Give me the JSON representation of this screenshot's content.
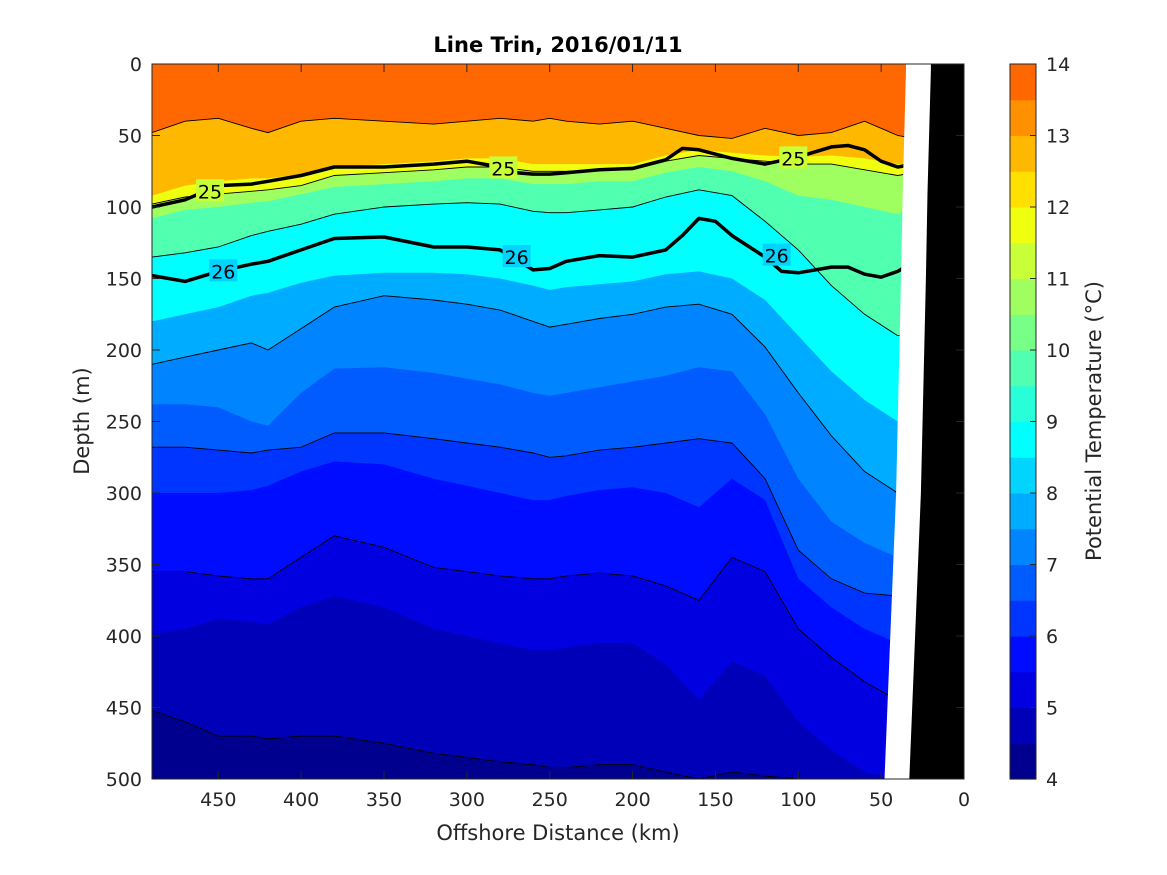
{
  "chart_data": {
    "type": "contourf",
    "title": "Line Trin, 2016/01/11",
    "xlabel": "Offshore Distance (km)",
    "ylabel": "Depth (m)",
    "xlim": [
      490,
      0
    ],
    "x_reversed": true,
    "ylim": [
      0,
      500
    ],
    "y_reversed": true,
    "xticks": [
      450,
      400,
      350,
      300,
      250,
      200,
      150,
      100,
      50,
      0
    ],
    "yticks": [
      0,
      50,
      100,
      150,
      200,
      250,
      300,
      350,
      400,
      450,
      500
    ],
    "grid": false,
    "colorbar": {
      "label": "Potential Temperature (°C)",
      "ticks": [
        4,
        5,
        6,
        7,
        8,
        9,
        10,
        11,
        12,
        13,
        14
      ],
      "levels": [
        4,
        4.5,
        5,
        5.5,
        6,
        6.5,
        7,
        7.5,
        8,
        8.5,
        9,
        9.5,
        10,
        10.5,
        11,
        11.5,
        12,
        12.5,
        13,
        13.5,
        14
      ],
      "colors": [
        "#00008f",
        "#0000b8",
        "#0000e0",
        "#000cff",
        "#0034ff",
        "#005cff",
        "#0084ff",
        "#00acff",
        "#00d4ff",
        "#00ffff",
        "#28ffd8",
        "#50ffb0",
        "#78ff88",
        "#a0ff60",
        "#c8ff38",
        "#f0ff10",
        "#ffe000",
        "#ffb800",
        "#ff9000",
        "#ff6800",
        "#ff4000"
      ],
      "colormap": "jet"
    },
    "temperature_isotherm_depths": {
      "x": [
        490,
        470,
        450,
        430,
        420,
        400,
        380,
        350,
        320,
        300,
        280,
        260,
        250,
        240,
        220,
        200,
        180,
        160,
        140,
        120,
        100,
        80,
        60,
        40,
        30
      ],
      "levels": [
        {
          "temp": 13.0,
          "depth": [
            48,
            40,
            38,
            45,
            48,
            40,
            38,
            40,
            42,
            40,
            38,
            40,
            38,
            40,
            42,
            40,
            45,
            50,
            52,
            45,
            50,
            48,
            40,
            50,
            52
          ]
        },
        {
          "temp": 12.0,
          "depth": [
            92,
            85,
            82,
            80,
            80,
            77,
            72,
            70,
            68,
            66,
            66,
            70,
            70,
            70,
            70,
            70,
            64,
            60,
            62,
            64,
            65,
            64,
            66,
            70,
            70
          ]
        },
        {
          "temp": 11.0,
          "depth": [
            98,
            93,
            91,
            89,
            88,
            85,
            78,
            76,
            74,
            72,
            72,
            75,
            75,
            75,
            74,
            74,
            68,
            64,
            66,
            68,
            70,
            70,
            74,
            78,
            76
          ]
        },
        {
          "temp": 10.0,
          "depth": [
            108,
            102,
            100,
            97,
            96,
            91,
            86,
            84,
            82,
            80,
            80,
            84,
            84,
            84,
            82,
            82,
            76,
            72,
            75,
            82,
            92,
            95,
            100,
            105,
            100
          ]
        },
        {
          "temp": 9.0,
          "depth": [
            135,
            132,
            128,
            120,
            117,
            112,
            105,
            100,
            98,
            97,
            98,
            103,
            104,
            104,
            102,
            100,
            93,
            88,
            92,
            110,
            130,
            155,
            175,
            190,
            188
          ]
        },
        {
          "temp": 8.0,
          "depth": [
            180,
            175,
            170,
            162,
            160,
            153,
            148,
            146,
            146,
            147,
            150,
            155,
            158,
            156,
            154,
            152,
            147,
            145,
            150,
            165,
            190,
            215,
            235,
            250,
            245
          ]
        },
        {
          "temp": 7.5,
          "depth": [
            210,
            205,
            200,
            195,
            200,
            185,
            170,
            162,
            165,
            168,
            172,
            180,
            184,
            182,
            178,
            175,
            170,
            168,
            175,
            198,
            230,
            260,
            285,
            300,
            300
          ]
        },
        {
          "temp": 7.0,
          "depth": [
            238,
            238,
            240,
            250,
            253,
            230,
            213,
            212,
            216,
            220,
            224,
            230,
            232,
            230,
            226,
            222,
            218,
            212,
            215,
            245,
            290,
            320,
            335,
            345,
            350
          ]
        },
        {
          "temp": 6.5,
          "depth": [
            268,
            268,
            270,
            272,
            270,
            268,
            258,
            258,
            262,
            265,
            268,
            272,
            275,
            274,
            270,
            268,
            265,
            262,
            265,
            290,
            340,
            360,
            370,
            372,
            375
          ]
        },
        {
          "temp": 6.0,
          "depth": [
            300,
            300,
            300,
            298,
            295,
            285,
            278,
            280,
            290,
            295,
            300,
            305,
            305,
            302,
            298,
            296,
            300,
            310,
            290,
            305,
            360,
            380,
            395,
            405,
            410
          ]
        },
        {
          "temp": 5.5,
          "depth": [
            355,
            355,
            358,
            360,
            360,
            345,
            330,
            338,
            352,
            355,
            358,
            360,
            360,
            358,
            356,
            358,
            365,
            375,
            345,
            355,
            395,
            415,
            432,
            445,
            455
          ]
        },
        {
          "temp": 5.0,
          "depth": [
            398,
            395,
            388,
            390,
            392,
            380,
            372,
            380,
            395,
            400,
            405,
            410,
            410,
            408,
            405,
            405,
            420,
            445,
            418,
            428,
            460,
            480,
            495,
            500,
            500
          ]
        },
        {
          "temp": 4.5,
          "depth": [
            452,
            460,
            470,
            470,
            472,
            470,
            470,
            475,
            482,
            485,
            488,
            490,
            492,
            492,
            490,
            490,
            495,
            500,
            495,
            498,
            500,
            500,
            500,
            500,
            500
          ]
        }
      ]
    },
    "density_contours": [
      {
        "label": "25",
        "x": [
          490,
          470,
          450,
          430,
          420,
          400,
          380,
          350,
          320,
          300,
          280,
          270,
          260,
          250,
          240,
          220,
          200,
          180,
          170,
          160,
          140,
          120,
          100,
          80,
          70,
          60,
          50,
          40,
          30,
          20
        ],
        "depth": [
          100,
          95,
          85,
          84,
          82,
          78,
          72,
          72,
          70,
          68,
          72,
          76,
          77,
          77,
          76,
          74,
          73,
          67,
          59,
          60,
          66,
          70,
          65,
          58,
          57,
          60,
          68,
          72,
          70,
          66
        ]
      },
      {
        "label": "26",
        "x": [
          490,
          470,
          450,
          430,
          420,
          400,
          380,
          350,
          320,
          300,
          280,
          270,
          260,
          250,
          240,
          220,
          200,
          180,
          170,
          160,
          150,
          140,
          120,
          110,
          100,
          80,
          70,
          60,
          50,
          40,
          30,
          20
        ],
        "depth": [
          148,
          152,
          145,
          140,
          138,
          130,
          122,
          121,
          128,
          128,
          130,
          137,
          144,
          143,
          138,
          134,
          135,
          130,
          120,
          108,
          110,
          120,
          135,
          145,
          146,
          142,
          142,
          147,
          149,
          145,
          138,
          138
        ]
      }
    ],
    "contour_labels": [
      {
        "text": "25",
        "x": 455,
        "y": 89
      },
      {
        "text": "25",
        "x": 278,
        "y": 73
      },
      {
        "text": "25",
        "x": 103,
        "y": 66
      },
      {
        "text": "26",
        "x": 447,
        "y": 145
      },
      {
        "text": "26",
        "x": 270,
        "y": 135
      },
      {
        "text": "26",
        "x": 113,
        "y": 134
      }
    ],
    "bathymetry": {
      "fill": "#000000",
      "x": [
        20,
        20,
        22,
        23,
        26,
        33
      ],
      "depth": [
        0,
        4,
        90,
        150,
        300,
        500
      ]
    }
  }
}
